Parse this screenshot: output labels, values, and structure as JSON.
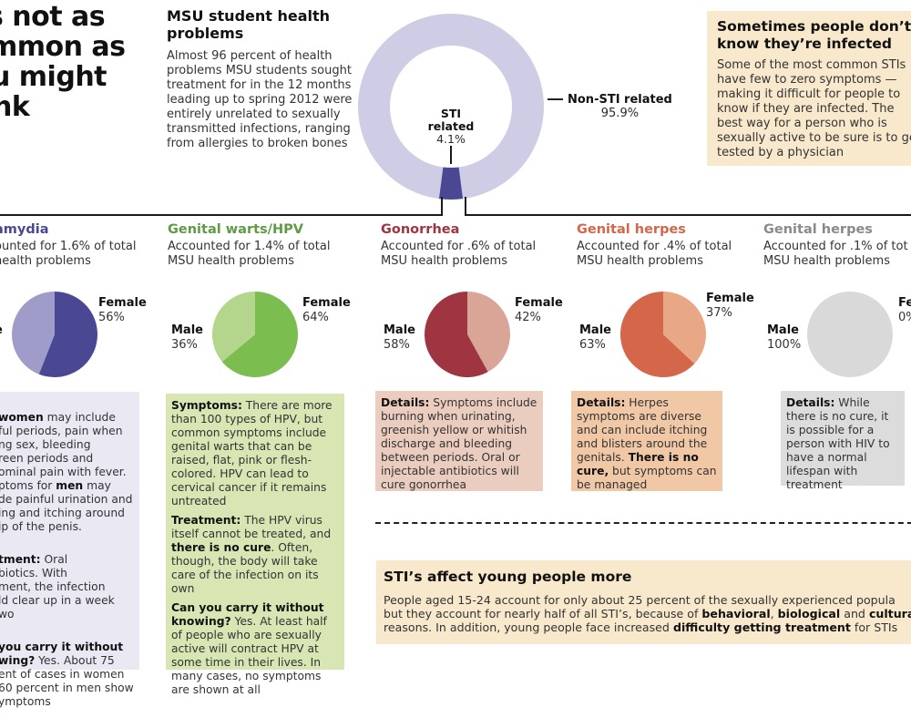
{
  "headline": [
    "s not as",
    "mmon as",
    "u might",
    "nk"
  ],
  "msu_health": {
    "title": "MSU student health problems",
    "body": "Almost 96 percent of health problems MSU students sought treatment for in the 12 months leading up to spring 2012 were entirely unrelated to sexually transmitted infections, ranging from allergies to broken bones"
  },
  "infected_callout": {
    "title_line1": "Sometimes people don’t",
    "title_line2": "know they’re infected",
    "body": "Some of the most common STIs\nhave few to zero symptoms —\nmaking it difficult for people to\nknow if they are infected. The\nbest way for a person who is\nsexually active to be sure is to get\ntested by a physician"
  },
  "colors": {
    "chlamydia_dark": "#4b4893",
    "chlamydia_light": "#9f9cc9",
    "chlamydia_box": "#e9e8f3",
    "hpv_dark": "#7bbd4f",
    "hpv_light": "#b3d68c",
    "hpv_box": "#d7e6b3",
    "gonorrhea_dark": "#9e3540",
    "gonorrhea_light": "#d8a596",
    "gonorrhea_box": "#ebcdbf",
    "herpes_dark": "#d4664a",
    "herpes_light": "#e8a886",
    "herpes_box": "#f1c8a6",
    "hiv_dark": "#d9d9d9",
    "hiv_box": "#dcdcdc",
    "donut_light": "#cfcde6",
    "donut_dark": "#4b4893",
    "callout_bg": "#f8e8cc"
  },
  "chart_data": [
    {
      "type": "pie",
      "title": "MSU student health problems",
      "style": "donut",
      "categories": [
        "Non-STI related",
        "STI related"
      ],
      "values": [
        95.9,
        4.1
      ],
      "labels": [
        {
          "name": "Non-STI related",
          "value_text": "95.9%"
        },
        {
          "name": "STI related",
          "name_line1": "STI",
          "name_line2": "related",
          "value_text": "4.1%"
        }
      ]
    },
    {
      "type": "pie",
      "title": "amydia",
      "subtitle": "ounted for 1.6% of total\n health problems",
      "categories": [
        "Female",
        "Male"
      ],
      "values": [
        56,
        44
      ],
      "labels": {
        "female": "Female",
        "female_pct": "56%",
        "male": "e",
        "male_pct": ""
      }
    },
    {
      "type": "pie",
      "title": "Genital warts/HPV",
      "subtitle": "Accounted for 1.4% of total\nMSU health problems",
      "categories": [
        "Female",
        "Male"
      ],
      "values": [
        64,
        36
      ],
      "labels": {
        "female": "Female",
        "female_pct": "64%",
        "male": "Male",
        "male_pct": "36%"
      }
    },
    {
      "type": "pie",
      "title": "Gonorrhea",
      "subtitle": "Accounted for .6% of total\nMSU health problems",
      "categories": [
        "Female",
        "Male"
      ],
      "values": [
        42,
        58
      ],
      "labels": {
        "female": "Female",
        "female_pct": "42%",
        "male": "Male",
        "male_pct": "58%"
      }
    },
    {
      "type": "pie",
      "title": "Genital herpes",
      "subtitle": "Accounted for .4% of total\nMSU health problems",
      "categories": [
        "Female",
        "Male"
      ],
      "values": [
        37,
        63
      ],
      "labels": {
        "female": "Female",
        "female_pct": "37%",
        "male": "Male",
        "male_pct": "63%"
      }
    },
    {
      "type": "pie",
      "title": "Genital herpes",
      "subtitle": "Accounted for .1% of tot\nMSU health problems",
      "categories": [
        "Female",
        "Male"
      ],
      "values": [
        0,
        100
      ],
      "labels": {
        "female": "Fe",
        "female_pct": "0%",
        "male": "Male",
        "male_pct": "100%"
      }
    }
  ],
  "boxes": {
    "chlamydia": {
      "p1_pre": "",
      "p1_b1": "women",
      "p1_t1": " may include\nful periods, pain when\nng sex, bleeding\nreen periods and\nominal pain with fever.\nptoms for ",
      "p1_b2": "men",
      "p1_t2": " may\nde painful urination and\ning and itching around\nip of the penis.",
      "p2_b": "tment:",
      "p2_t": " Oral\nbiotics. With\nment, the infection\nld clear up in a week\nwo",
      "p3_b": "you carry it without\nwing?",
      "p3_t": " Yes. About 75\nent of cases in women\n60 percent in men show\nymptoms"
    },
    "hpv": {
      "p1_b": "Symptoms:",
      "p1_t": " There are more than 100 types of HPV, but common symptoms include genital warts that can be raised, flat, pink or flesh-colored. HPV can lead to cervical cancer if it remains untreated",
      "p2_b": "Treatment:",
      "p2_t": " The HPV virus itself cannot be treated, and ",
      "p2_b2": "there is no cure",
      "p2_t2": ". Often, though, the body will take care of the infection on its own",
      "p3_b": "Can you carry it without knowing?",
      "p3_t": " Yes. At least half of people who are sexually active will contract HPV at some time in their lives. In many cases, no symptoms are shown at all"
    },
    "gonorrhea": {
      "p_b": "Details:",
      "p_t": " Symptoms include burning when urinating, greenish yellow or whitish discharge and bleeding between periods. Oral or injectable antibiotics will cure gonorrhea"
    },
    "herpes": {
      "p_b": "Details:",
      "p_t": " Herpes symptoms are diverse and can include itching and blisters around the genitals. ",
      "p_b2": "There is no cure,",
      "p_t2": " but symptoms can be managed"
    },
    "hiv": {
      "p_b": "Details:",
      "p_t": " While there is no cure, it is possible for a person with HIV to have a normal lifespan with treatment"
    }
  },
  "young_callout": {
    "title": "STI’s affect young people more",
    "t1": "People aged 15-24 account for only about 25 percent of the sexually experienced popula",
    "t2": "but they account for nearly half of all STI’s, because of ",
    "b1": "behavioral",
    "t3": ", ",
    "b2": "biological",
    "t4": " and ",
    "b3": "cultural",
    "t5": "reasons. In addition, young people face increased ",
    "b4": "difficulty getting treatment",
    "t6": " for STIs"
  }
}
